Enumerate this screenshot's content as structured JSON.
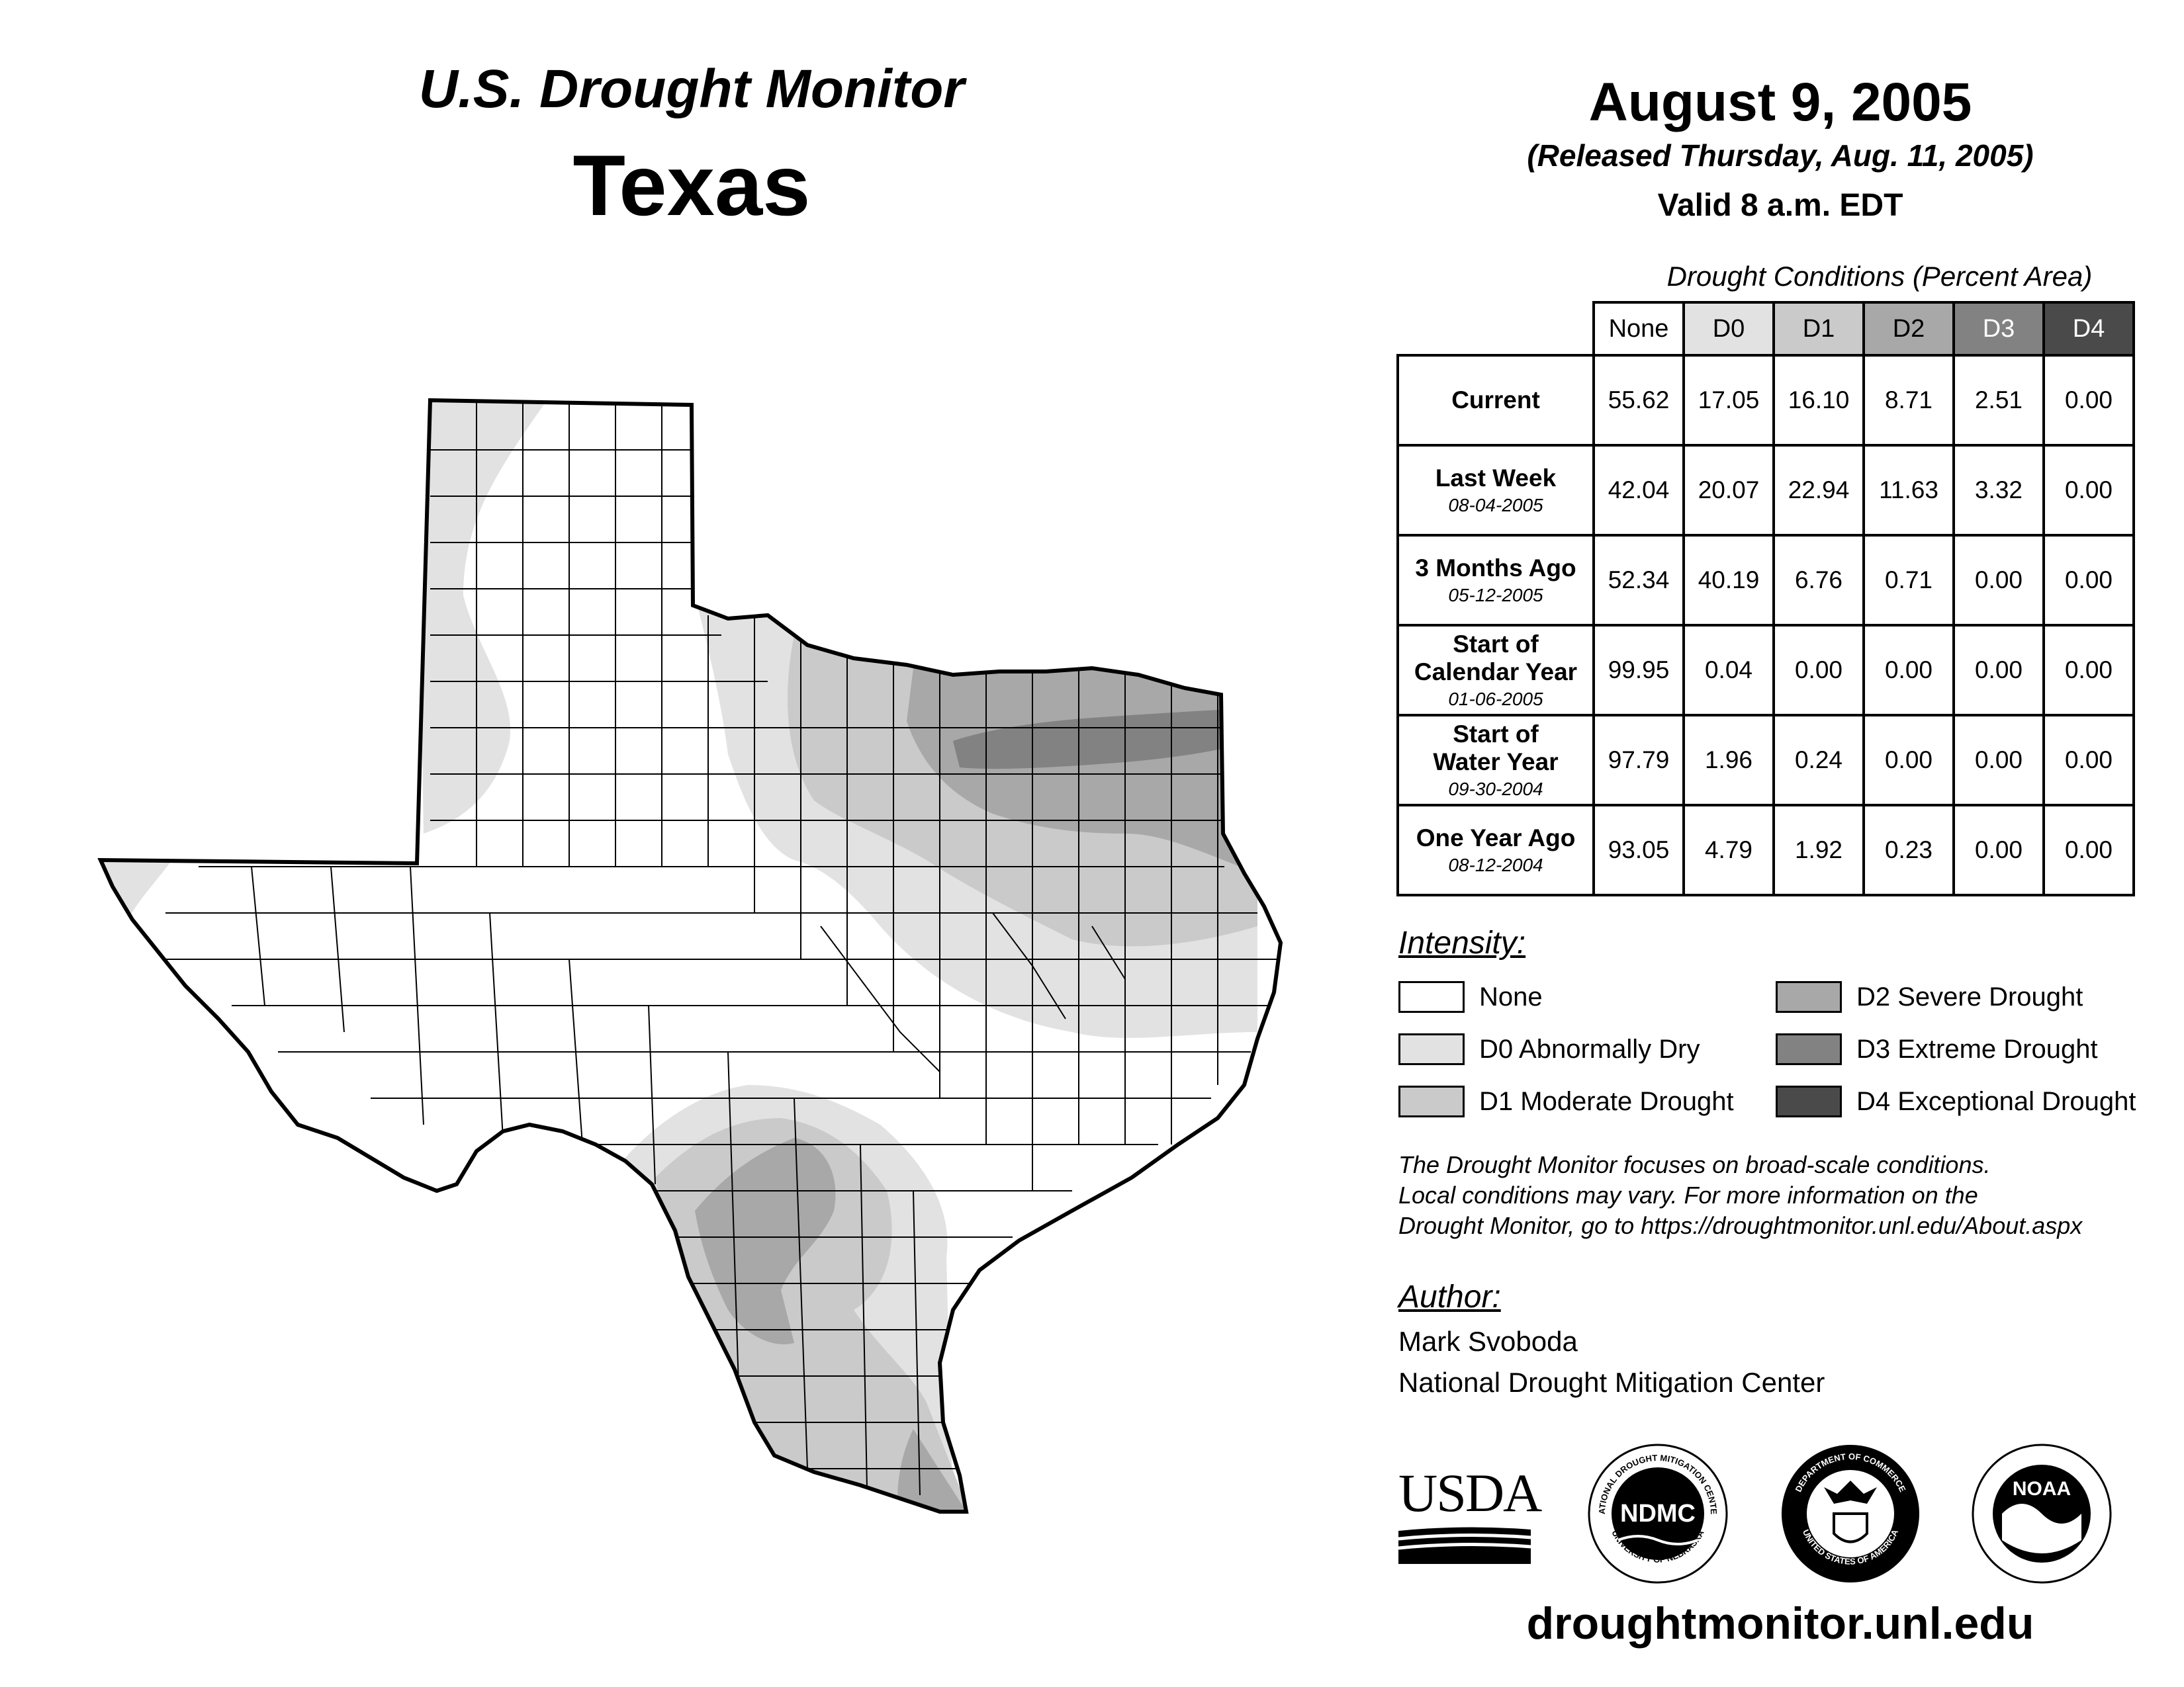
{
  "header": {
    "product": "U.S. Drought Monitor",
    "state": "Texas",
    "date": "August 9, 2005",
    "released": "(Released Thursday, Aug. 11, 2005)",
    "valid": "Valid 8 a.m. EDT"
  },
  "table": {
    "caption": "Drought Conditions (Percent Area)",
    "columns": [
      "None",
      "D0",
      "D1",
      "D2",
      "D3",
      "D4"
    ],
    "rows": [
      {
        "label": "Current",
        "date": "",
        "values": [
          "55.62",
          "17.05",
          "16.10",
          "8.71",
          "2.51",
          "0.00"
        ]
      },
      {
        "label": "Last Week",
        "date": "08-04-2005",
        "values": [
          "42.04",
          "20.07",
          "22.94",
          "11.63",
          "3.32",
          "0.00"
        ]
      },
      {
        "label": "3 Months Ago",
        "date": "05-12-2005",
        "values": [
          "52.34",
          "40.19",
          "6.76",
          "0.71",
          "0.00",
          "0.00"
        ]
      },
      {
        "label": "Start of\nCalendar Year",
        "date": "01-06-2005",
        "values": [
          "99.95",
          "0.04",
          "0.00",
          "0.00",
          "0.00",
          "0.00"
        ]
      },
      {
        "label": "Start of\nWater Year",
        "date": "09-30-2004",
        "values": [
          "97.79",
          "1.96",
          "0.24",
          "0.00",
          "0.00",
          "0.00"
        ]
      },
      {
        "label": "One Year Ago",
        "date": "08-12-2004",
        "values": [
          "93.05",
          "4.79",
          "1.92",
          "0.23",
          "0.00",
          "0.00"
        ]
      }
    ]
  },
  "legend": {
    "title": "Intensity:",
    "items": [
      {
        "label": "None",
        "color": "#ffffff"
      },
      {
        "label": "D0 Abnormally Dry",
        "color": "#e2e2e2"
      },
      {
        "label": "D1 Moderate Drought",
        "color": "#cacaca"
      },
      {
        "label": "D2 Severe Drought",
        "color": "#a8a8a8"
      },
      {
        "label": "D3 Extreme Drought",
        "color": "#828282"
      },
      {
        "label": "D4 Exceptional Drought",
        "color": "#4a4a4a"
      }
    ]
  },
  "note": {
    "lines": [
      "The Drought Monitor focuses on broad-scale conditions.",
      "Local conditions may vary. For more information on the",
      "Drought Monitor, go to https://droughtmonitor.unl.edu/About.aspx"
    ]
  },
  "author": {
    "title": "Author:",
    "name": "Mark Svoboda",
    "org": "National Drought Mitigation Center"
  },
  "logos": {
    "usda": "USDA",
    "ndmc": "NDMC",
    "ndmc_ring_top": "NATIONAL DROUGHT MITIGATION CENTER",
    "ndmc_ring_bottom": "UNIVERSITY OF NEBRASKA",
    "commerce_ring_top": "DEPARTMENT OF COMMERCE",
    "commerce_ring_bottom": "UNITED STATES OF AMERICA",
    "noaa": "NOAA"
  },
  "footer": {
    "url": "droughtmonitor.unl.edu"
  }
}
